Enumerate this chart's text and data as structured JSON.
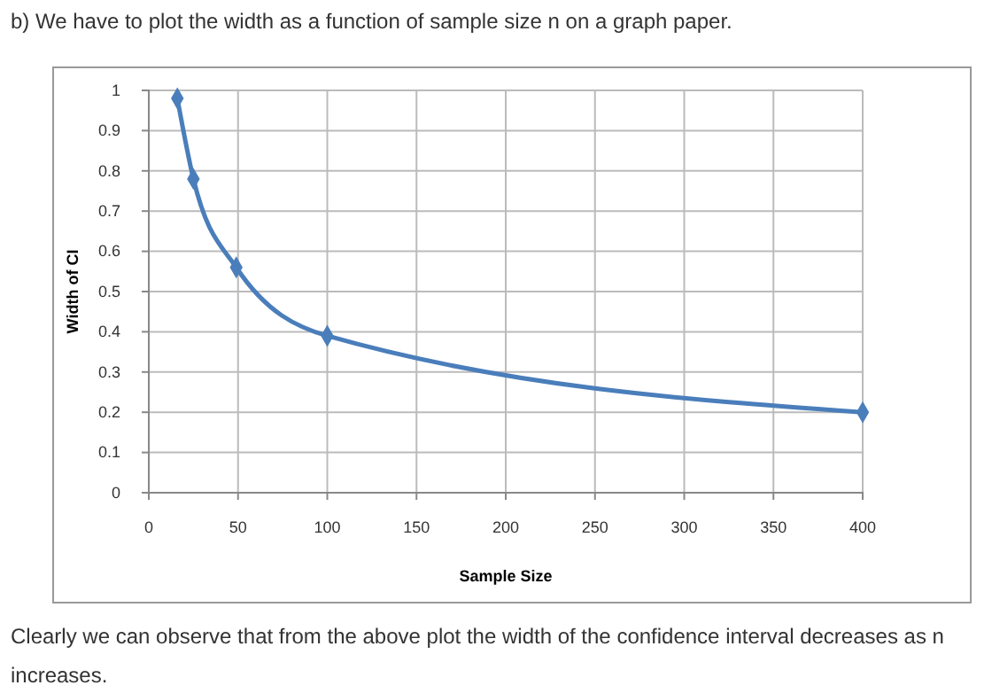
{
  "chart_data": {
    "type": "line",
    "title": "b) We have to plot the width as a function of sample size n on a graph paper.",
    "xlabel": "Sample Size",
    "ylabel": "Width of CI",
    "x": [
      16,
      25,
      49,
      100,
      400
    ],
    "series": [
      {
        "color": "#4a7ebb",
        "values": [
          0.98,
          0.78,
          0.56,
          0.39,
          0.2
        ]
      }
    ],
    "xlim": [
      0,
      400
    ],
    "xticks": [
      0,
      50,
      100,
      150,
      200,
      250,
      300,
      350,
      400
    ],
    "ylim": [
      0,
      1
    ],
    "yticks": [
      0,
      0.1,
      0.2,
      0.3,
      0.4,
      0.5,
      0.6,
      0.7,
      0.8,
      0.9,
      1
    ],
    "grid": true,
    "marker": "diamond",
    "line_style": "solid",
    "annotations": [
      "Clearly we can observe that from the above plot the width of the confidence interval decreases as n increases."
    ]
  }
}
